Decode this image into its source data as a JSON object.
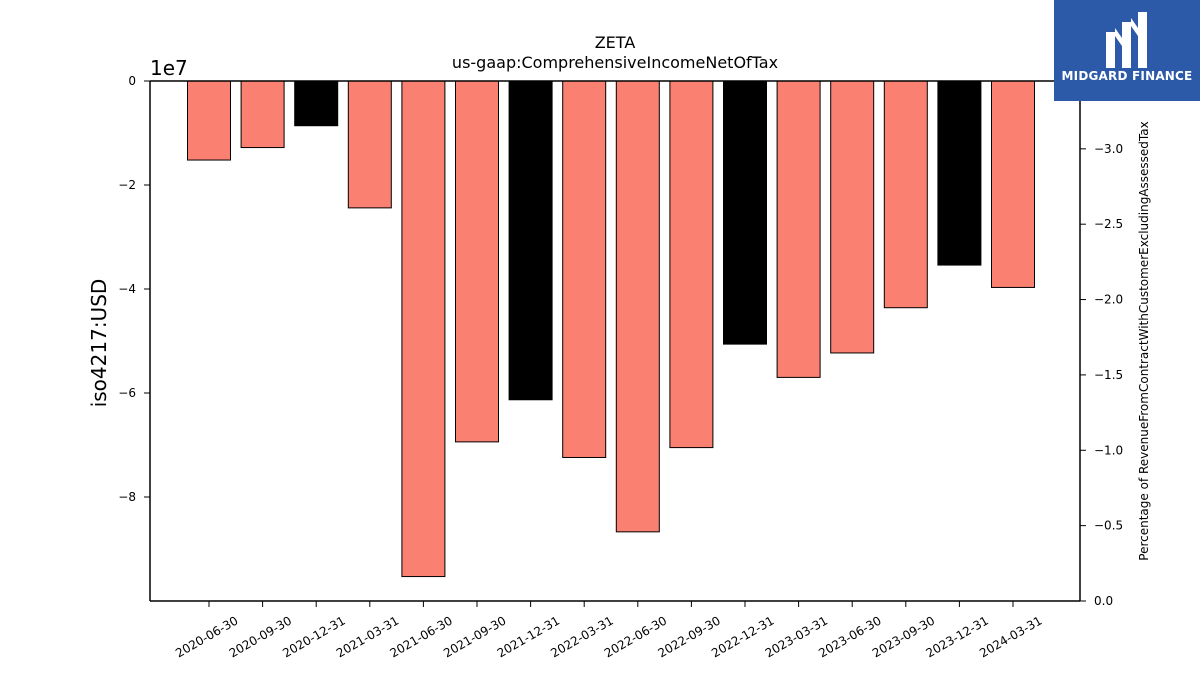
{
  "chart_data": {
    "type": "bar",
    "title": "ZETA",
    "subtitle": "us-gaap:ComprehensiveIncomeNetOfTax",
    "ylabel": "iso4217:USD",
    "y_offset_label": "1e7",
    "y2label": "Percentage of RevenueFromContractWithCustomerExcludingAssessedTax",
    "categories": [
      "2020-06-30",
      "2020-09-30",
      "2020-12-31",
      "2021-03-31",
      "2021-06-30",
      "2021-09-30",
      "2021-12-31",
      "2022-03-31",
      "2022-06-30",
      "2022-09-30",
      "2022-12-31",
      "2023-03-31",
      "2023-06-30",
      "2023-09-30",
      "2023-12-31",
      "2024-03-31"
    ],
    "values": [
      -15200000,
      -12800000,
      -8600000,
      -24400000,
      -95300000,
      -69400000,
      -61300000,
      -72400000,
      -86700000,
      -70500000,
      -50600000,
      -57000000,
      -52300000,
      -43600000,
      -35400000,
      -39700000
    ],
    "bar_colors": [
      "#fa8072",
      "#fa8072",
      "#000000",
      "#fa8072",
      "#fa8072",
      "#fa8072",
      "#000000",
      "#fa8072",
      "#fa8072",
      "#fa8072",
      "#000000",
      "#fa8072",
      "#fa8072",
      "#fa8072",
      "#000000",
      "#fa8072"
    ],
    "ylim": [
      -100000000,
      0
    ],
    "yticks": [
      0,
      -20000000,
      -40000000,
      -60000000,
      -80000000
    ],
    "ytick_labels": [
      "0",
      "−2",
      "−4",
      "−6",
      "−8"
    ],
    "y2lim": [
      0,
      -3.45
    ],
    "y2ticks": [
      0,
      -0.5,
      -1.0,
      -1.5,
      -2.0,
      -2.5,
      -3.0
    ],
    "y2tick_labels": [
      "0.0",
      "−0.5",
      "−1.0",
      "−1.5",
      "−2.0",
      "−2.5",
      "−3.0"
    ],
    "grid": false,
    "legend": "none"
  },
  "logo": {
    "text": "MIDGARD FINANCE",
    "color": "#2c5aa8"
  }
}
